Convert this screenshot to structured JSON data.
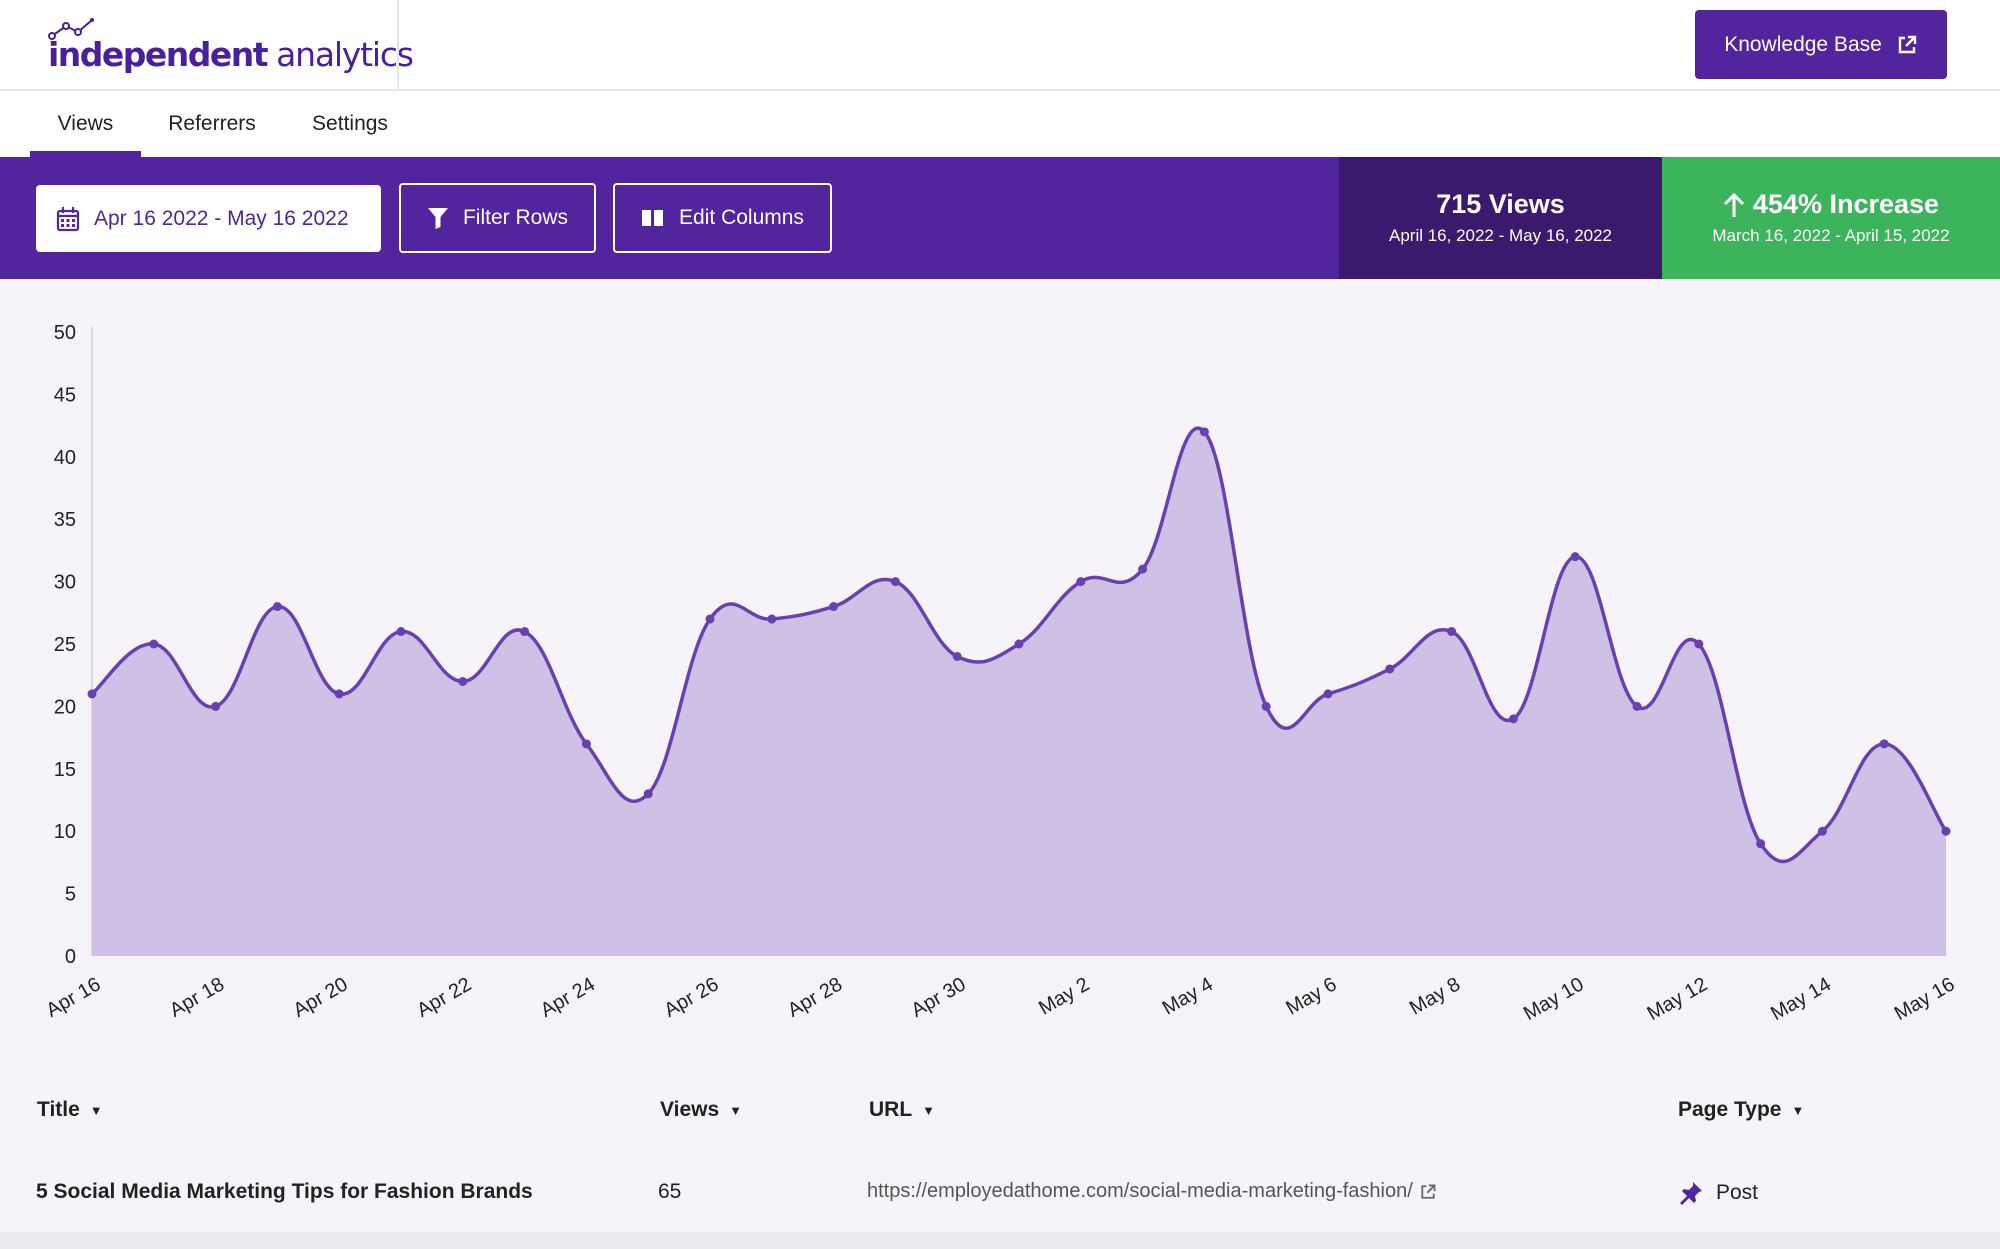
{
  "app": {
    "logo_primary": "independent",
    "logo_secondary": "analytics",
    "kb_button_label": "Knowledge Base"
  },
  "tabs": [
    {
      "label": "Views",
      "active": true
    },
    {
      "label": "Referrers",
      "active": false
    },
    {
      "label": "Settings",
      "active": false
    }
  ],
  "toolbar": {
    "date_range": "Apr 16 2022 - May 16 2022",
    "filter_label": "Filter Rows",
    "columns_label": "Edit Columns"
  },
  "stats": {
    "views_value": "715 Views",
    "views_range": "April 16, 2022 - May 16, 2022",
    "increase_value": "454% Increase",
    "increase_range": "March 16, 2022 - April 15, 2022"
  },
  "chart_data": {
    "type": "area",
    "x": [
      "Apr 16",
      "Apr 17",
      "Apr 18",
      "Apr 19",
      "Apr 20",
      "Apr 21",
      "Apr 22",
      "Apr 23",
      "Apr 24",
      "Apr 25",
      "Apr 26",
      "Apr 27",
      "Apr 28",
      "Apr 29",
      "Apr 30",
      "May 1",
      "May 2",
      "May 3",
      "May 4",
      "May 5",
      "May 6",
      "May 7",
      "May 8",
      "May 9",
      "May 10",
      "May 11",
      "May 12",
      "May 13",
      "May 14",
      "May 15",
      "May 16"
    ],
    "tick_labels": [
      "Apr 16",
      "Apr 18",
      "Apr 20",
      "Apr 22",
      "Apr 24",
      "Apr 26",
      "Apr 28",
      "Apr 30",
      "May 2",
      "May 4",
      "May 6",
      "May 8",
      "May 10",
      "May 12",
      "May 14",
      "May 16"
    ],
    "series": [
      {
        "values": [
          21,
          25,
          20,
          28,
          21,
          26,
          22,
          26,
          17,
          13,
          27,
          27,
          28,
          30,
          24,
          25,
          30,
          31,
          42,
          20,
          21,
          23,
          26,
          19,
          32,
          20,
          25,
          9,
          10,
          17,
          10
        ]
      }
    ],
    "ylim": [
      0,
      50
    ],
    "yticks": [
      0,
      5,
      10,
      15,
      20,
      25,
      30,
      35,
      40,
      45,
      50
    ],
    "grid": false,
    "colors": {
      "line": "#6a3fb0",
      "fill": "#cfc0e6"
    }
  },
  "table": {
    "headers": {
      "title": "Title",
      "views": "Views",
      "url": "URL",
      "page_type": "Page Type"
    },
    "rows": [
      {
        "title": "5 Social Media Marketing Tips for Fashion Brands",
        "views": "65",
        "url": "https://employedathome.com/social-media-marketing-fashion/",
        "page_type": "Post"
      }
    ]
  },
  "colors": {
    "brand_purple": "#52249d",
    "dark_purple": "#3b1a6e",
    "green": "#3cb45c"
  }
}
